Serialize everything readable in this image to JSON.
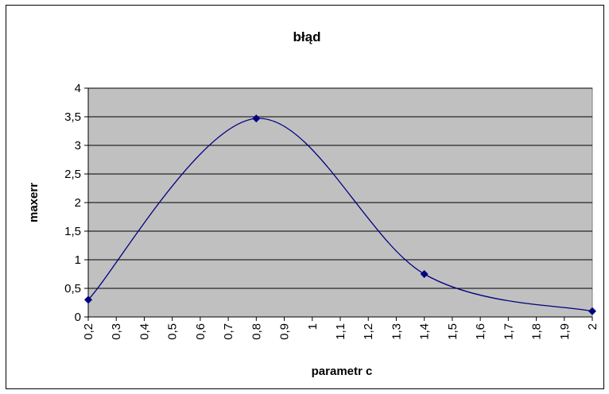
{
  "chart_data": {
    "type": "line",
    "title": "błąd",
    "xlabel": "parametr c",
    "ylabel": "maxerr",
    "x": [
      0.2,
      0.8,
      1.4,
      2.0
    ],
    "series": [
      {
        "name": "maxerr",
        "color": "#000080",
        "values": [
          0.3,
          3.47,
          0.75,
          0.1
        ]
      }
    ],
    "smooth": true,
    "grid": true,
    "background": "#c0c0c0",
    "xlim": [
      0.2,
      2.0
    ],
    "xticks": [
      {
        "value": 0.2,
        "label": "0,2"
      },
      {
        "value": 0.3,
        "label": "0,3"
      },
      {
        "value": 0.4,
        "label": "0,4"
      },
      {
        "value": 0.5,
        "label": "0,5"
      },
      {
        "value": 0.6,
        "label": "0,6"
      },
      {
        "value": 0.7,
        "label": "0,7"
      },
      {
        "value": 0.8,
        "label": "0,8"
      },
      {
        "value": 0.9,
        "label": "0,9"
      },
      1,
      {
        "value": 1.1,
        "label": "1,1"
      },
      {
        "value": 1.2,
        "label": "1,2"
      },
      {
        "value": 1.3,
        "label": "1,3"
      },
      {
        "value": 1.4,
        "label": "1,4"
      },
      {
        "value": 1.5,
        "label": "1,5"
      },
      {
        "value": 1.6,
        "label": "1,6"
      },
      {
        "value": 1.7,
        "label": "1,7"
      },
      {
        "value": 1.8,
        "label": "1,8"
      },
      {
        "value": 1.9,
        "label": "1,9"
      },
      2
    ],
    "ylim": [
      0,
      4
    ],
    "yticks": [
      0,
      {
        "value": 0.5,
        "label": "0,5"
      },
      1,
      {
        "value": 1.5,
        "label": "1,5"
      },
      2,
      {
        "value": 2.5,
        "label": "2,5"
      },
      3,
      {
        "value": 3.5,
        "label": "3,5"
      },
      4
    ]
  }
}
